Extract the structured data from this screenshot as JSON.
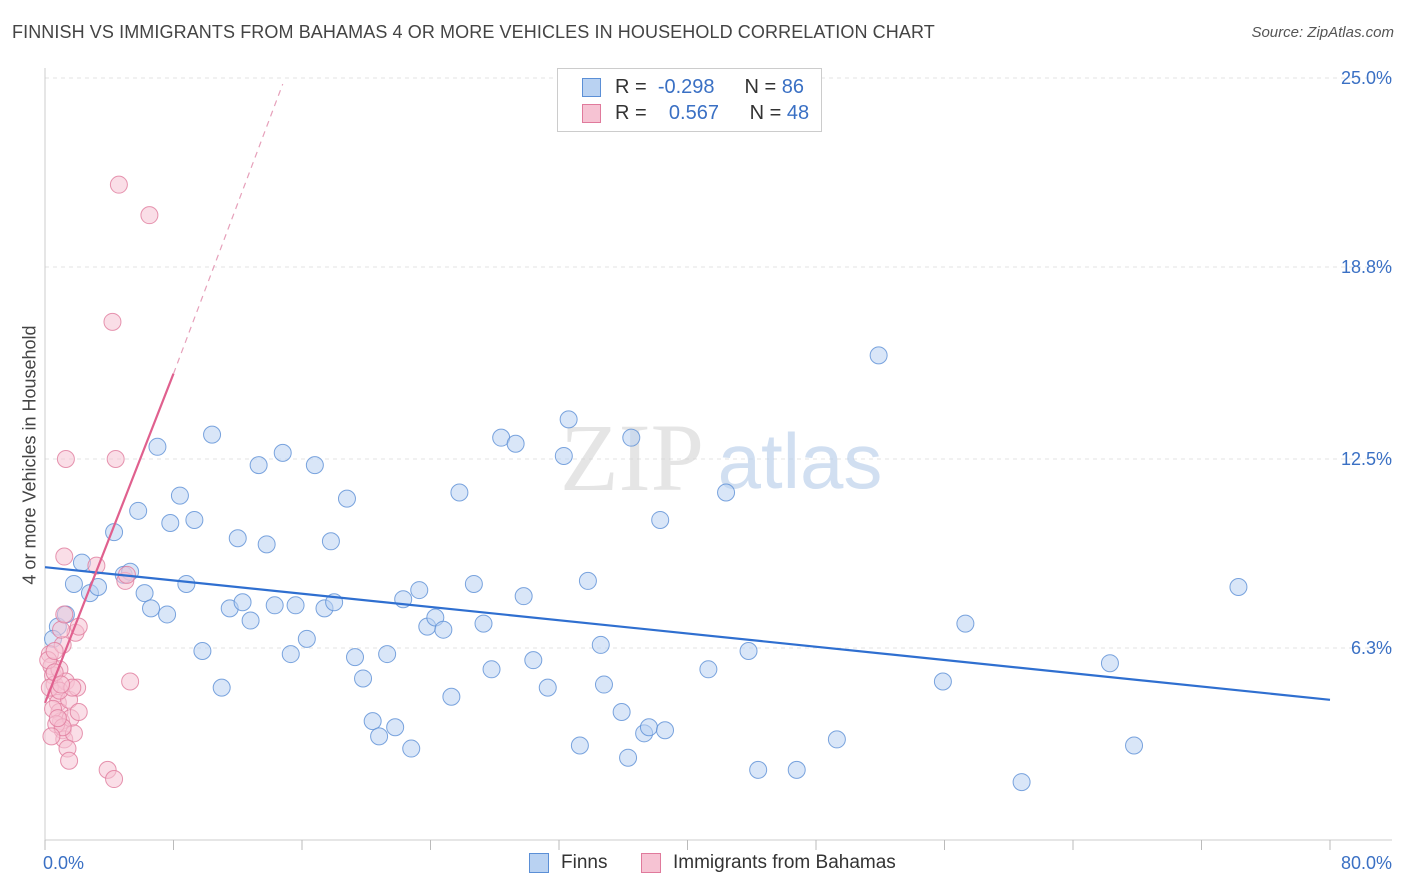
{
  "title": "FINNISH VS IMMIGRANTS FROM BAHAMAS 4 OR MORE VEHICLES IN HOUSEHOLD CORRELATION CHART",
  "source": "Source: ZipAtlas.com",
  "watermark": {
    "zip": "ZIP",
    "atlas": "atlas"
  },
  "legend": {
    "r_label": "R =",
    "n_label": "N =",
    "rows": [
      {
        "series": "Finns",
        "r": "-0.298",
        "n": "86",
        "color": "#5b8fd6",
        "fill": "#b9d2f2"
      },
      {
        "series": "Immigrants from Bahamas",
        "r": "0.567",
        "n": "48",
        "color": "#e07a9c",
        "fill": "#f6c3d3"
      }
    ]
  },
  "chart_data": {
    "type": "scatter",
    "title": "FINNISH VS IMMIGRANTS FROM BAHAMAS 4 OR MORE VEHICLES IN HOUSEHOLD CORRELATION CHART",
    "xlabel": "",
    "ylabel": "4 or more Vehicles in Household",
    "xlim": [
      0,
      80
    ],
    "ylim": [
      0,
      25
    ],
    "x_tick_labels": [
      "0.0%",
      "80.0%"
    ],
    "y_ticks": [
      6.3,
      12.5,
      18.8,
      25.0
    ],
    "y_tick_labels": [
      "6.3%",
      "12.5%",
      "18.8%",
      "25.0%"
    ],
    "grid": "horizontal dashed",
    "legend_position": "top-center and bottom",
    "series": [
      {
        "name": "Finns",
        "color": "#5b8fd6",
        "fill": "#b9d2f2",
        "points": [
          [
            0.8,
            7.0
          ],
          [
            1.3,
            7.4
          ],
          [
            1.8,
            8.4
          ],
          [
            2.3,
            9.1
          ],
          [
            2.8,
            8.1
          ],
          [
            3.3,
            8.3
          ],
          [
            4.3,
            10.1
          ],
          [
            4.9,
            8.7
          ],
          [
            5.3,
            8.8
          ],
          [
            5.8,
            10.8
          ],
          [
            6.2,
            8.1
          ],
          [
            6.6,
            7.6
          ],
          [
            7.0,
            12.9
          ],
          [
            7.6,
            7.4
          ],
          [
            7.8,
            10.4
          ],
          [
            8.4,
            11.3
          ],
          [
            8.8,
            8.4
          ],
          [
            9.3,
            10.5
          ],
          [
            9.8,
            6.2
          ],
          [
            10.4,
            13.3
          ],
          [
            11.0,
            5.0
          ],
          [
            11.5,
            7.6
          ],
          [
            12.0,
            9.9
          ],
          [
            12.3,
            7.8
          ],
          [
            12.8,
            7.2
          ],
          [
            13.3,
            12.3
          ],
          [
            13.8,
            9.7
          ],
          [
            14.3,
            7.7
          ],
          [
            14.8,
            12.7
          ],
          [
            15.3,
            6.1
          ],
          [
            15.6,
            7.7
          ],
          [
            16.3,
            6.6
          ],
          [
            16.8,
            12.3
          ],
          [
            17.4,
            7.6
          ],
          [
            17.8,
            9.8
          ],
          [
            18.0,
            7.8
          ],
          [
            18.8,
            11.2
          ],
          [
            19.3,
            6.0
          ],
          [
            19.8,
            5.3
          ],
          [
            20.4,
            3.9
          ],
          [
            20.8,
            3.4
          ],
          [
            21.3,
            6.1
          ],
          [
            21.8,
            3.7
          ],
          [
            22.3,
            7.9
          ],
          [
            22.8,
            3.0
          ],
          [
            23.3,
            8.2
          ],
          [
            23.8,
            7.0
          ],
          [
            24.3,
            7.3
          ],
          [
            24.8,
            6.9
          ],
          [
            25.3,
            4.7
          ],
          [
            25.8,
            11.4
          ],
          [
            26.7,
            8.4
          ],
          [
            27.3,
            7.1
          ],
          [
            27.8,
            5.6
          ],
          [
            28.4,
            13.2
          ],
          [
            29.3,
            13.0
          ],
          [
            29.8,
            8.0
          ],
          [
            30.4,
            5.9
          ],
          [
            31.3,
            5.0
          ],
          [
            32.3,
            12.6
          ],
          [
            32.6,
            13.8
          ],
          [
            33.3,
            3.1
          ],
          [
            33.8,
            8.5
          ],
          [
            34.6,
            6.4
          ],
          [
            34.8,
            5.1
          ],
          [
            35.9,
            4.2
          ],
          [
            36.3,
            2.7
          ],
          [
            36.5,
            13.2
          ],
          [
            37.3,
            3.5
          ],
          [
            37.6,
            3.7
          ],
          [
            38.3,
            10.5
          ],
          [
            38.6,
            3.6
          ],
          [
            41.3,
            5.6
          ],
          [
            42.4,
            11.4
          ],
          [
            43.8,
            6.2
          ],
          [
            44.4,
            2.3
          ],
          [
            46.8,
            2.3
          ],
          [
            49.3,
            3.3
          ],
          [
            51.9,
            15.9
          ],
          [
            55.9,
            5.2
          ],
          [
            57.3,
            7.1
          ],
          [
            60.8,
            1.9
          ],
          [
            66.3,
            5.8
          ],
          [
            67.8,
            3.1
          ],
          [
            74.3,
            8.3
          ],
          [
            0.5,
            6.6
          ]
        ]
      },
      {
        "name": "Immigrants from Bahamas",
        "color": "#e07a9c",
        "fill": "#f6c3d3",
        "points": [
          [
            0.3,
            6.1
          ],
          [
            0.4,
            5.7
          ],
          [
            0.5,
            5.4
          ],
          [
            0.6,
            5.1
          ],
          [
            0.7,
            4.8
          ],
          [
            0.8,
            4.5
          ],
          [
            0.9,
            4.2
          ],
          [
            1.0,
            3.9
          ],
          [
            1.1,
            3.6
          ],
          [
            1.2,
            3.3
          ],
          [
            0.3,
            5.0
          ],
          [
            0.5,
            4.3
          ],
          [
            0.7,
            3.8
          ],
          [
            0.9,
            5.6
          ],
          [
            1.1,
            6.4
          ],
          [
            1.3,
            5.2
          ],
          [
            1.5,
            4.6
          ],
          [
            1.6,
            4.0
          ],
          [
            1.8,
            3.5
          ],
          [
            1.9,
            6.8
          ],
          [
            2.0,
            5.0
          ],
          [
            2.1,
            4.2
          ],
          [
            1.0,
            6.9
          ],
          [
            1.2,
            7.4
          ],
          [
            1.4,
            3.0
          ],
          [
            1.5,
            2.6
          ],
          [
            1.2,
            9.3
          ],
          [
            2.1,
            7.0
          ],
          [
            3.2,
            9.0
          ],
          [
            3.9,
            2.3
          ],
          [
            4.3,
            2.0
          ],
          [
            4.6,
            21.5
          ],
          [
            4.4,
            12.5
          ],
          [
            4.2,
            17.0
          ],
          [
            5.0,
            8.5
          ],
          [
            5.3,
            5.2
          ],
          [
            6.5,
            20.5
          ],
          [
            1.3,
            12.5
          ],
          [
            0.2,
            5.9
          ],
          [
            0.6,
            5.5
          ],
          [
            0.9,
            4.9
          ],
          [
            1.1,
            3.7
          ],
          [
            0.4,
            3.4
          ],
          [
            1.7,
            5.0
          ],
          [
            0.8,
            4.0
          ],
          [
            1.0,
            5.1
          ],
          [
            0.6,
            6.2
          ],
          [
            5.1,
            8.7
          ]
        ]
      }
    ],
    "trendlines": [
      {
        "series": "Finns",
        "x0": 0,
        "y0": 8.95,
        "x1": 80,
        "y1": 4.6
      },
      {
        "series": "Immigrants from Bahamas",
        "x0": 0,
        "y0": 4.5,
        "x1": 8,
        "y1": 15.3,
        "dashed_to": {
          "x": 14.8,
          "y": 24.8
        }
      }
    ]
  }
}
